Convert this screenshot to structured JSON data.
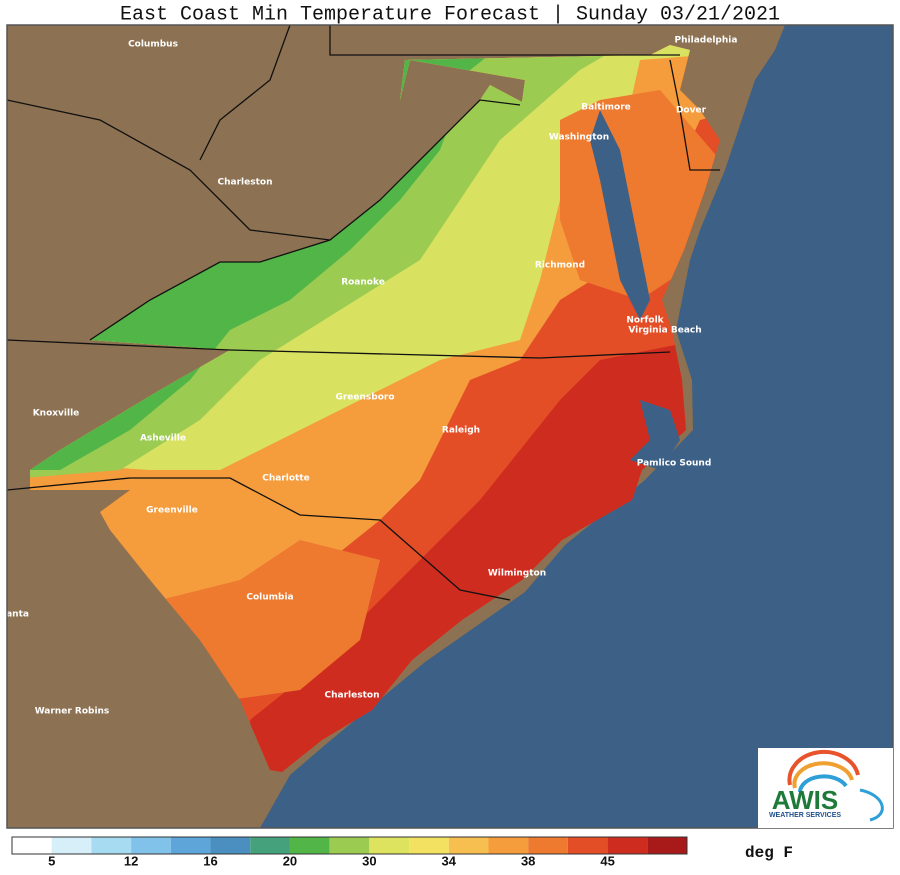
{
  "header": {
    "title": "East Coast Min Temperature Forecast | Sunday 03/21/2021"
  },
  "cities": [
    "Columbus",
    "Charleston",
    "Philadelphia",
    "Baltimore",
    "Dover",
    "Washington",
    "Richmond",
    "Roanoke",
    "Norfolk",
    "Virginia Beach",
    "Knoxville",
    "Greensboro",
    "Raleigh",
    "Asheville",
    "Pamlico Sound",
    "Charlotte",
    "Greenville",
    "Wilmington",
    "Columbia",
    "lanta",
    "Charleston",
    "Warner Robins"
  ],
  "legend": {
    "colors": [
      "#ffffff",
      "#d6eff9",
      "#a6dbf2",
      "#80c2ea",
      "#5ea6da",
      "#4a8fc0",
      "#45a07c",
      "#52b547",
      "#9ccb52",
      "#dde35e",
      "#f3e262",
      "#f7bf4f",
      "#f59c3d",
      "#ee7a2f",
      "#e34e27",
      "#cf2c20",
      "#a81a1a"
    ],
    "ticks": [
      5,
      12,
      16,
      20,
      30,
      34,
      38,
      45
    ],
    "unit": "deg F"
  },
  "logo": {
    "name": "AWIS",
    "tagline": "WEATHER SERVICES"
  }
}
